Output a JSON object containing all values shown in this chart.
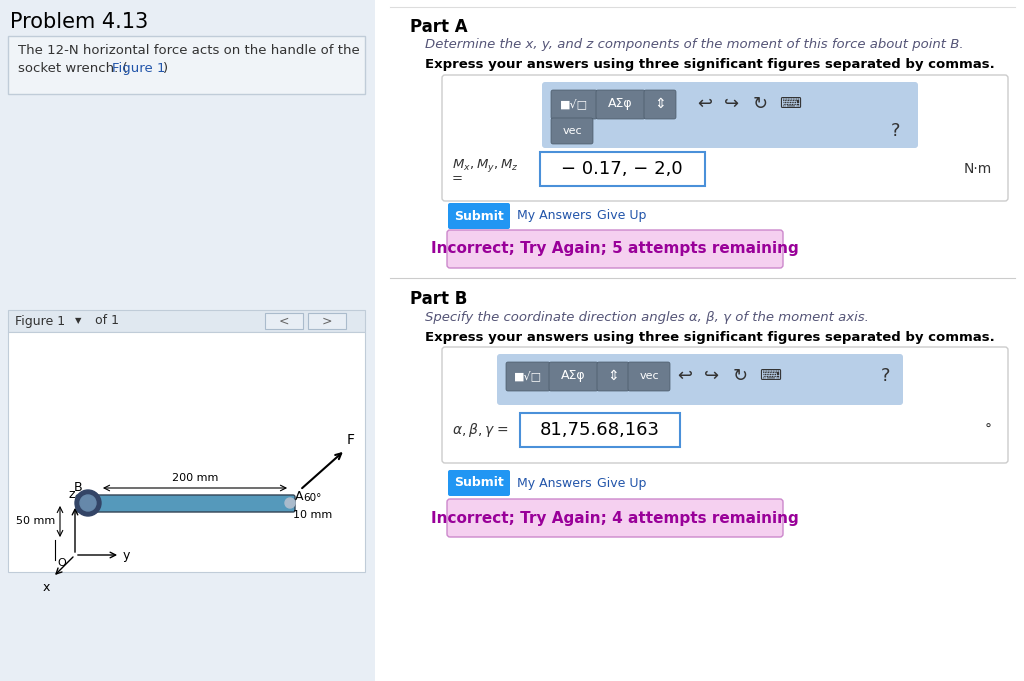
{
  "bg_color": "#e8eef5",
  "left_panel_bg": "#e8eef5",
  "right_panel_bg": "#ffffff",
  "problem_title": "Problem 4.13",
  "problem_text_line1": "The 12-N horizontal force acts on the handle of the",
  "problem_text_line2_plain": "socket wrench. (",
  "problem_text_link": "Figure 1",
  "problem_text_close": ")",
  "figure_label": "Figure 1",
  "part_a_title": "Part A",
  "part_a_desc": "Determine the x, y, and z components of the moment of this force about point B.",
  "part_a_express": "Express your answers using three significant figures separated by commas.",
  "part_a_answer": "− 0.17, − 2,0",
  "part_a_unit": "N·m",
  "submit_color": "#2196F3",
  "incorrect_a_text": "Incorrect; Try Again; 5 attempts remaining",
  "incorrect_b_text": "Incorrect; Try Again; 4 attempts remaining",
  "part_b_title": "Part B",
  "part_b_desc": "Specify the coordinate direction angles α, β, γ of the moment axis.",
  "part_b_express": "Express your answers using three significant figures separated by commas.",
  "part_b_answer": "81,75.68,163",
  "part_b_unit": "°",
  "toolbar_bg": "#b8cfe8",
  "toolbar_btn_color": "#6b7b8d",
  "input_border_color": "#4a90d9",
  "incorrect_bg": "#f5d0f0",
  "incorrect_border": "#cc88cc",
  "incorrect_text_color": "#990099"
}
